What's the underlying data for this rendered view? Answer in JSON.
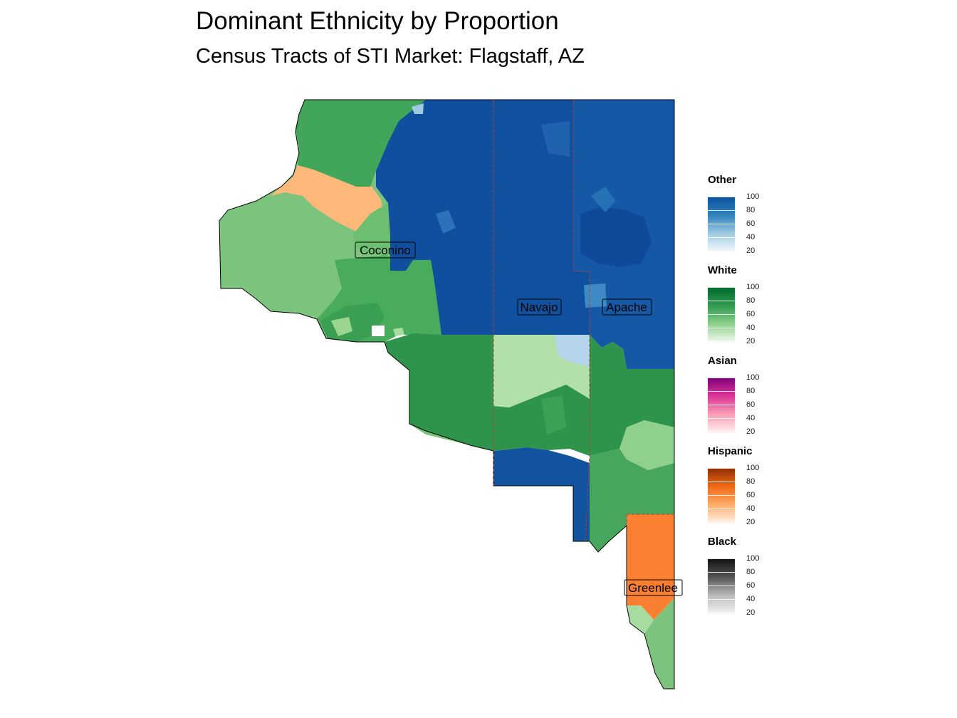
{
  "title": "Dominant Ethnicity by Proportion",
  "subtitle": "Census Tracts of STI Market: Flagstaff, AZ",
  "counties": [
    {
      "name": "Coconino"
    },
    {
      "name": "Navajo"
    },
    {
      "name": "Apache"
    },
    {
      "name": "Greenlee"
    }
  ],
  "legend": [
    {
      "title": "Other",
      "ticks": [
        "100",
        "80",
        "60",
        "40",
        "20"
      ],
      "colors": [
        "#08519c",
        "#3182bd",
        "#9ecae1",
        "#f7fbff"
      ]
    },
    {
      "title": "White",
      "ticks": [
        "100",
        "80",
        "60",
        "40",
        "20"
      ],
      "colors": [
        "#00682e",
        "#2f9a4e",
        "#8fd18c",
        "#f4fbf1"
      ]
    },
    {
      "title": "Asian",
      "ticks": [
        "100",
        "80",
        "60",
        "40",
        "20"
      ],
      "colors": [
        "#7a0177",
        "#dd3497",
        "#fa9fb5",
        "#fff3f3"
      ]
    },
    {
      "title": "Hispanic",
      "ticks": [
        "100",
        "80",
        "60",
        "40",
        "20"
      ],
      "colors": [
        "#8c2d04",
        "#f16913",
        "#fdae6b",
        "#fff5eb"
      ]
    },
    {
      "title": "Black",
      "ticks": [
        "100",
        "80",
        "60",
        "40",
        "20"
      ],
      "colors": [
        "#111111",
        "#555555",
        "#bbbbbb",
        "#f5f5f5"
      ]
    }
  ]
}
